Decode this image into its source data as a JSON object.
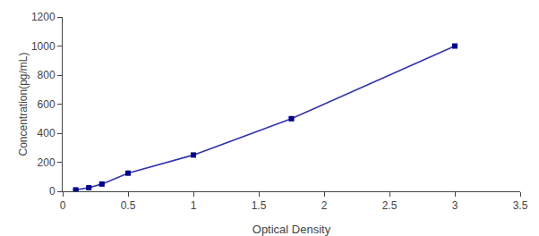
{
  "chart_data": {
    "type": "line",
    "xlabel": "Optical Density",
    "ylabel": "Concentration(pg/mL)",
    "x": [
      0.1,
      0.2,
      0.3,
      0.5,
      1.0,
      1.75,
      3.0
    ],
    "series": [
      {
        "type": "line",
        "color": "#3333AA",
        "line_style": "solid",
        "values": [
          10,
          25,
          50,
          125,
          250,
          500,
          1000
        ]
      },
      {
        "type": "scatter",
        "color": "#00008B",
        "marker": "square",
        "values": [
          10,
          25,
          50,
          125,
          250,
          500,
          1000
        ],
        "errors": [
          4,
          4,
          6,
          6,
          6,
          8,
          10
        ]
      }
    ],
    "xlim": [
      0,
      3.5
    ],
    "xticks": [
      0,
      0.5,
      1,
      1.5,
      2,
      2.5,
      3,
      3.5
    ],
    "ylim": [
      0,
      1200
    ],
    "yticks": [
      0,
      200,
      400,
      600,
      800,
      1000,
      1200
    ],
    "grid": false
  }
}
